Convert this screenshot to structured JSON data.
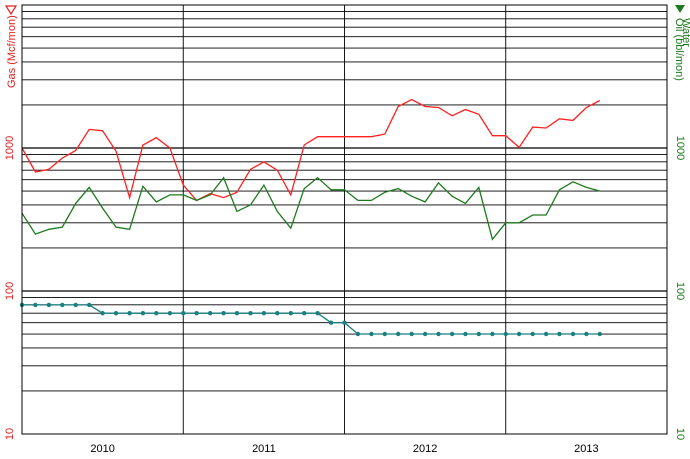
{
  "chart_data": {
    "type": "line",
    "title": "",
    "ylabel_left": "Gas (Mcf/mon)",
    "ylabel_right": "Oil (bbl/mon)",
    "ylabel_right_extra": "Water",
    "yscale": "log",
    "ylim": [
      10,
      10000
    ],
    "y_tick_labels": [
      "10",
      "100",
      "1000"
    ],
    "x_tick_labels": [
      "2010",
      "2011",
      "2012",
      "2013"
    ],
    "xlim": [
      2009.5,
      2013.5
    ],
    "grid": true,
    "colors": {
      "gas": "#ff2020",
      "oil": "#1e7a1e",
      "water": "#1a7f7f",
      "left_axis": "#e02020",
      "right_axis": "#1e7a1e"
    },
    "markers": {
      "gas": "open-triangle-down",
      "oil": "filled-triangle-down"
    },
    "series": [
      {
        "key": "gas",
        "x": [
          2009.5,
          2009.583,
          2009.667,
          2009.75,
          2009.833,
          2009.917,
          2010.0,
          2010.083,
          2010.167,
          2010.25,
          2010.333,
          2010.417,
          2010.5,
          2010.583,
          2010.667,
          2010.75,
          2010.833,
          2010.917,
          2011.0,
          2011.083,
          2011.167,
          2011.25,
          2011.333,
          2011.417,
          2011.5,
          2011.583,
          2011.667,
          2011.75,
          2011.833,
          2011.917,
          2012.0,
          2012.083,
          2012.167,
          2012.25,
          2012.333,
          2012.417,
          2012.5,
          2012.583,
          2012.667,
          2012.75,
          2012.833,
          2012.917,
          2013.0,
          2013.083
        ],
        "values": [
          1000,
          680,
          710,
          850,
          960,
          1350,
          1320,
          950,
          450,
          1050,
          1180,
          1000,
          550,
          430,
          480,
          450,
          490,
          710,
          800,
          700,
          470,
          1050,
          1200,
          1200,
          1200,
          1200,
          1200,
          1250,
          1950,
          2180,
          1950,
          1920,
          1680,
          1860,
          1720,
          1220,
          1220,
          1010,
          1400,
          1380,
          1600,
          1560,
          1920,
          2150
        ]
      },
      {
        "key": "oil",
        "x": [
          2009.5,
          2009.583,
          2009.667,
          2009.75,
          2009.833,
          2009.917,
          2010.0,
          2010.083,
          2010.167,
          2010.25,
          2010.333,
          2010.417,
          2010.5,
          2010.583,
          2010.667,
          2010.75,
          2010.833,
          2010.917,
          2011.0,
          2011.083,
          2011.167,
          2011.25,
          2011.333,
          2011.417,
          2011.5,
          2011.583,
          2011.667,
          2011.75,
          2011.833,
          2011.917,
          2012.0,
          2012.083,
          2012.167,
          2012.25,
          2012.333,
          2012.417,
          2012.5,
          2012.583,
          2012.667,
          2012.75,
          2012.833,
          2012.917,
          2013.0,
          2013.083
        ],
        "values": [
          350,
          250,
          270,
          280,
          410,
          530,
          380,
          280,
          270,
          540,
          420,
          470,
          470,
          430,
          470,
          620,
          360,
          400,
          550,
          360,
          275,
          520,
          620,
          510,
          510,
          430,
          430,
          490,
          520,
          460,
          420,
          570,
          460,
          410,
          530,
          230,
          300,
          300,
          340,
          340,
          510,
          580,
          530,
          500
        ]
      },
      {
        "key": "water",
        "x": [
          2009.5,
          2009.583,
          2009.667,
          2009.75,
          2009.833,
          2009.917,
          2010.0,
          2010.083,
          2010.167,
          2010.25,
          2010.333,
          2010.417,
          2010.5,
          2010.583,
          2010.667,
          2010.75,
          2010.833,
          2010.917,
          2011.0,
          2011.083,
          2011.167,
          2011.25,
          2011.333,
          2011.417,
          2011.5,
          2011.583,
          2011.667,
          2011.75,
          2011.833,
          2011.917,
          2012.0,
          2012.083,
          2012.167,
          2012.25,
          2012.333,
          2012.417,
          2012.5,
          2012.583,
          2012.667,
          2012.75,
          2012.833,
          2012.917,
          2013.0,
          2013.083
        ],
        "values": [
          80,
          80,
          80,
          80,
          80,
          80,
          70,
          70,
          70,
          70,
          70,
          70,
          70,
          70,
          70,
          70,
          70,
          70,
          70,
          70,
          70,
          70,
          70,
          60,
          60,
          50,
          50,
          50,
          50,
          50,
          50,
          50,
          50,
          50,
          50,
          50,
          50,
          50,
          50,
          50,
          50,
          50,
          50,
          50
        ]
      }
    ]
  }
}
